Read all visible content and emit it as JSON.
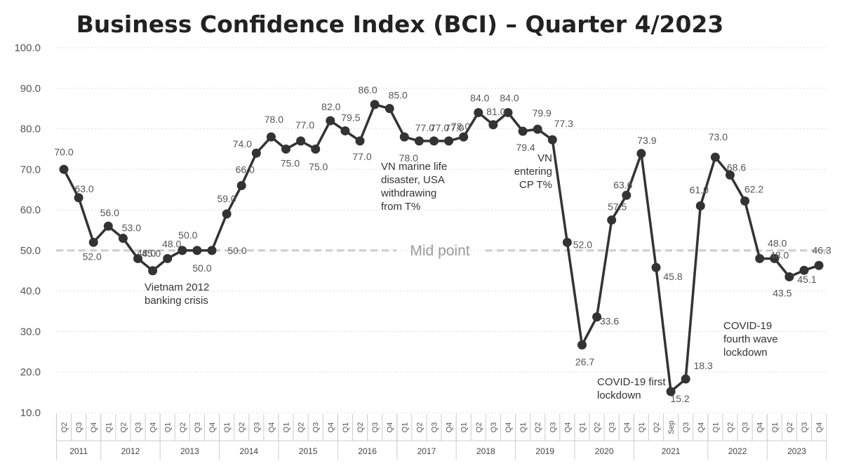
{
  "chart_data": {
    "type": "line",
    "title": "Business Confidence Index (BCI) – Quarter 4/2023",
    "ylim": [
      10,
      100
    ],
    "yticks": [
      "10.0",
      "20.0",
      "30.0",
      "40.0",
      "50.0",
      "60.0",
      "70.0",
      "80.0",
      "90.0",
      "100.0"
    ],
    "ytick_values": [
      10,
      20,
      30,
      40,
      50,
      60,
      70,
      80,
      90,
      100
    ],
    "grid": true,
    "reference_line": {
      "value": 50,
      "label": "Mid point"
    },
    "years": [
      {
        "label": "2011",
        "quarters": [
          "Q2",
          "Q3",
          "Q4"
        ]
      },
      {
        "label": "2012",
        "quarters": [
          "Q1",
          "Q2",
          "Q3",
          "Q4"
        ]
      },
      {
        "label": "2013",
        "quarters": [
          "Q1",
          "Q2",
          "Q3",
          "Q4"
        ]
      },
      {
        "label": "2014",
        "quarters": [
          "Q1",
          "Q2",
          "Q3",
          "Q4"
        ]
      },
      {
        "label": "2015",
        "quarters": [
          "Q1",
          "Q2",
          "Q3",
          "Q4"
        ]
      },
      {
        "label": "2016",
        "quarters": [
          "Q1",
          "Q2",
          "Q3",
          "Q4"
        ]
      },
      {
        "label": "2017",
        "quarters": [
          "Q1",
          "Q2",
          "Q3",
          "Q4"
        ]
      },
      {
        "label": "2018",
        "quarters": [
          "Q1",
          "Q2",
          "Q3",
          "Q4"
        ]
      },
      {
        "label": "2019",
        "quarters": [
          "Q1",
          "Q2",
          "Q3",
          "Q4"
        ]
      },
      {
        "label": "2020",
        "quarters": [
          "Q1",
          "Q2",
          "Q3",
          "Q4"
        ]
      },
      {
        "label": "2021",
        "quarters": [
          "Q1",
          "Q2",
          "Sep",
          "Q3",
          "Q4"
        ]
      },
      {
        "label": "2022",
        "quarters": [
          "Q1",
          "Q2",
          "Q3",
          "Q4"
        ]
      },
      {
        "label": "2023",
        "quarters": [
          "Q1",
          "Q2",
          "Q3",
          "Q4"
        ]
      }
    ],
    "values": [
      70.0,
      63.0,
      52.0,
      56.0,
      53.0,
      48.0,
      45.0,
      48.0,
      50.0,
      50.0,
      50.0,
      59.0,
      66.0,
      74.0,
      78.0,
      75.0,
      77.0,
      75.0,
      82.0,
      79.5,
      77.0,
      86.0,
      85.0,
      78.0,
      77.0,
      77.0,
      77.0,
      78.0,
      84.0,
      81.0,
      84.0,
      79.4,
      79.9,
      77.3,
      52.0,
      26.7,
      33.6,
      57.5,
      63.6,
      73.9,
      45.8,
      15.2,
      18.3,
      61.0,
      73.0,
      68.6,
      62.2,
      48.0,
      48.0,
      43.5,
      45.1,
      46.3
    ],
    "labels": [
      "70.0",
      "63.0",
      "52.0",
      "56.0",
      "53.0",
      "48.0",
      "45.0",
      "48.0",
      "50.0",
      "50.0",
      "50.0",
      "59.0",
      "66.0",
      "74.0",
      "78.0",
      "75.0",
      "77.0",
      "75.0",
      "82.0",
      "79.5",
      "77.0",
      "86.0",
      "85.0",
      "78.0",
      "77.0",
      "77.0",
      "77.0",
      "78.0",
      "84.0",
      "81.0",
      "84.0",
      "79.4",
      "79.9",
      "77.3",
      "52.0",
      "26.7",
      "33.6",
      "57.5",
      "63.6",
      "73.9",
      "45.8",
      "15.2",
      "18.3",
      "61.0",
      "73.0",
      "68.6",
      "62.2",
      "48.0",
      "48.0",
      "43.5",
      "45.1",
      "46.3"
    ],
    "annotations": [
      {
        "lines": [
          "Vietnam 2012",
          "banking crisis"
        ]
      },
      {
        "lines": [
          "VN marine life",
          "disaster, USA",
          "withdrawing",
          "from T%"
        ]
      },
      {
        "lines": [
          "VN",
          "entering",
          "CP T%"
        ]
      },
      {
        "lines": [
          "COVID-19 first",
          "lockdown"
        ]
      },
      {
        "lines": [
          "COVID-19",
          "fourth wave",
          "lockdown"
        ]
      }
    ],
    "colors": {
      "line": "#333333",
      "marker": "#333333",
      "grid": "#dddddd",
      "midline": "#cccccc"
    }
  }
}
